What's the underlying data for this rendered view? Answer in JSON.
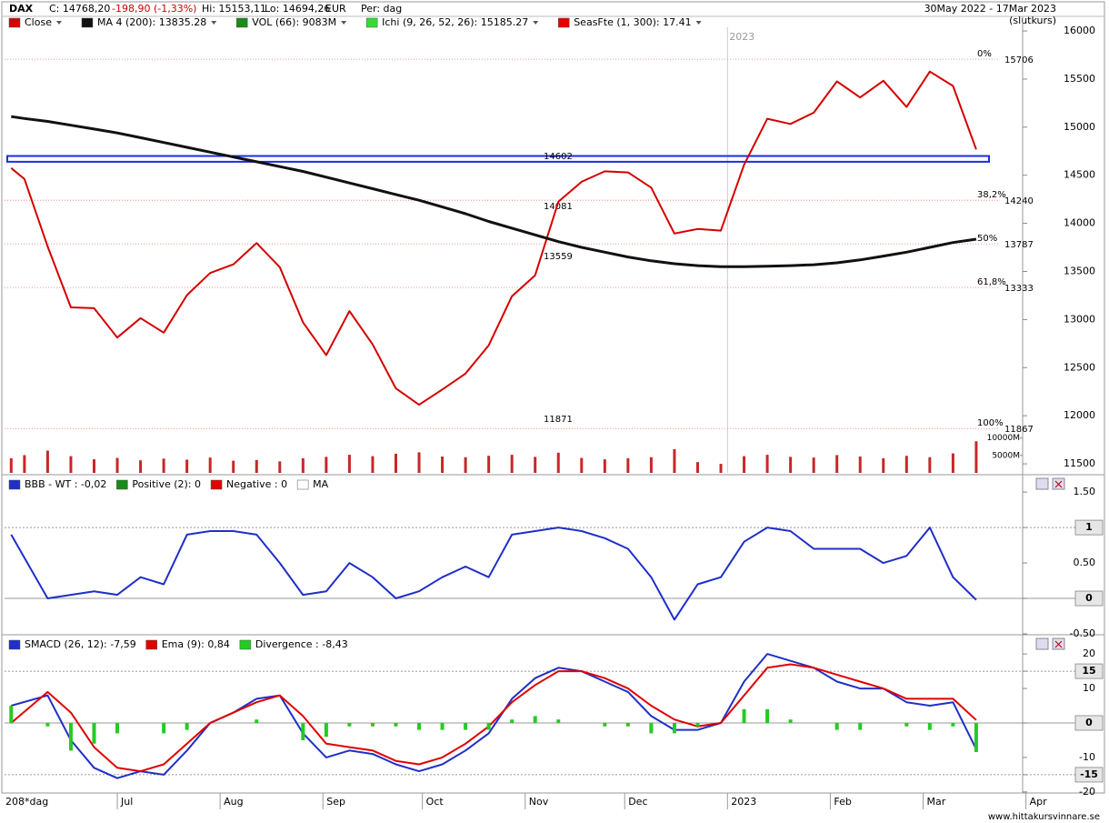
{
  "header": {
    "symbol": "DAX",
    "close": "C: 14768,20",
    "change": "-198,90 (-1,33%)",
    "high": "Hi: 15153,11",
    "low": "Lo: 14694,26",
    "currency": "EUR",
    "period": "Per: dag",
    "range": "30May 2022 - 17Mar 2023",
    "mode": "(slutkurs)"
  },
  "footer": "www.hittakursvinnare.se",
  "chart_data": [
    {
      "type": "line",
      "x": [
        0,
        4,
        11,
        18,
        25,
        32,
        39,
        46,
        53,
        60,
        67,
        74,
        81,
        88,
        95,
        102,
        109,
        116,
        123,
        130,
        137,
        144,
        151,
        158,
        165,
        172,
        179,
        186,
        193,
        200,
        207,
        214,
        221,
        228,
        235,
        242,
        249,
        256,
        263,
        270,
        277,
        284,
        291
      ],
      "xlim": [
        -2,
        305
      ],
      "ylim": [
        11406,
        16038
      ],
      "yticks": [
        11500,
        12000,
        12500,
        13000,
        13500,
        14000,
        14500,
        15000,
        15500,
        16000
      ],
      "series": [
        {
          "name": "Close",
          "color": "#d40000",
          "values": [
            14575,
            14460,
            13760,
            13126,
            13118,
            12813,
            13015,
            12864,
            13254,
            13484,
            13574,
            13795,
            13544,
            12971,
            12630,
            13088,
            12741,
            12284,
            12114,
            12273,
            12438,
            12731,
            13243,
            13460,
            14225,
            14432,
            14541,
            14529,
            14371,
            13894,
            13941,
            13924,
            14610,
            15087,
            15033,
            15150,
            15476,
            15308,
            15482,
            15210,
            15578,
            15428,
            14768.2
          ]
        },
        {
          "name": "MA 4 (200): 13835.28",
          "color": "#111111",
          "values": [
            15110,
            15090,
            15060,
            15020,
            14980,
            14940,
            14890,
            14840,
            14790,
            14740,
            14690,
            14640,
            14590,
            14540,
            14480,
            14420,
            14360,
            14300,
            14240,
            14170,
            14100,
            14020,
            13950,
            13880,
            13810,
            13750,
            13700,
            13650,
            13610,
            13580,
            13560,
            13550,
            13550,
            13555,
            13560,
            13570,
            13590,
            13620,
            13660,
            13700,
            13750,
            13800,
            13835.28
          ]
        }
      ],
      "volume": {
        "name": "VOL (66): 9083M",
        "color": "#1a8a1a",
        "ylim": [
          0,
          128000
        ],
        "ticks": [
          {
            "value": 10000,
            "label": "10000M"
          },
          {
            "value": 5000,
            "label": "5000M"
          }
        ],
        "values": [
          4200,
          5100,
          6400,
          4800,
          3900,
          4300,
          3600,
          4100,
          3800,
          4400,
          3500,
          3700,
          3300,
          4200,
          4600,
          5200,
          4800,
          5500,
          5900,
          4700,
          4500,
          4900,
          5200,
          4600,
          5800,
          4300,
          3900,
          4200,
          4500,
          6800,
          3100,
          2600,
          4800,
          5200,
          4600,
          4400,
          5100,
          4700,
          4200,
          4900,
          4500,
          5600,
          9083
        ]
      },
      "legend_extra": [
        {
          "name": "Ichi (9, 26, 52, 26): 15185.27",
          "color": "#33dd33"
        },
        {
          "name": "SeasFte (1, 300): 17.41",
          "color": "#e60000"
        }
      ],
      "year_marker": {
        "value": 216,
        "label": "2023"
      },
      "fib_levels": [
        {
          "pct": "0%",
          "value": 15706
        },
        {
          "pct": "38,2%",
          "value": 14240
        },
        {
          "pct": "50%",
          "value": 13787
        },
        {
          "pct": "61,8%",
          "value": 13333
        },
        {
          "pct": "100%",
          "value": 11867
        }
      ],
      "price_labels": [
        14602,
        14081,
        13559,
        11871
      ],
      "support_band": [
        14640,
        14700
      ]
    },
    {
      "type": "line",
      "x": [
        0,
        11,
        18,
        25,
        32,
        39,
        46,
        53,
        60,
        67,
        74,
        81,
        88,
        95,
        102,
        109,
        116,
        123,
        130,
        137,
        144,
        151,
        158,
        165,
        172,
        179,
        186,
        193,
        200,
        207,
        214,
        221,
        228,
        235,
        242,
        249,
        256,
        263,
        270,
        277,
        284,
        291
      ],
      "xlim": [
        -2,
        305
      ],
      "ylim": [
        -0.5,
        1.72
      ],
      "yticks": [
        {
          "value": 1.5,
          "label": "1.50"
        },
        1,
        {
          "value": 0.5,
          "label": "0.50"
        },
        0,
        {
          "value": -0.5,
          "label": "-0.50"
        }
      ],
      "reference_lines": [
        1,
        0
      ],
      "series": [
        {
          "name": "BBB - WT : -0,02",
          "color": "#1f2fc8",
          "values": [
            0.9,
            0.0,
            0.05,
            0.1,
            0.05,
            0.3,
            0.2,
            0.9,
            0.95,
            0.95,
            0.9,
            0.5,
            0.05,
            0.1,
            0.5,
            0.3,
            0.0,
            0.1,
            0.3,
            0.45,
            0.3,
            0.9,
            0.95,
            1.0,
            0.95,
            0.85,
            0.7,
            0.3,
            -0.3,
            0.2,
            0.3,
            0.8,
            1.0,
            0.95,
            0.7,
            0.7,
            0.7,
            0.5,
            0.6,
            1.0,
            0.3,
            -0.02
          ]
        }
      ],
      "legend_extra": [
        {
          "name": "Positive (2): 0",
          "color": "#1a8a1a"
        },
        {
          "name": "Negative : 0",
          "color": "#e00000"
        },
        {
          "name": "MA",
          "color": "#ffffff"
        }
      ]
    },
    {
      "type": "line",
      "x": [
        0,
        11,
        18,
        25,
        32,
        39,
        46,
        53,
        60,
        67,
        74,
        81,
        88,
        95,
        102,
        109,
        116,
        123,
        130,
        137,
        144,
        151,
        158,
        165,
        172,
        179,
        186,
        193,
        200,
        207,
        214,
        221,
        228,
        235,
        242,
        249,
        256,
        263,
        270,
        277,
        284,
        291
      ],
      "xlim": [
        -2,
        305
      ],
      "ylim": [
        -20.3,
        20.3
      ],
      "yticks": [
        20,
        15,
        10,
        0,
        -10,
        -15,
        -20
      ],
      "reference_lines": [
        15,
        0,
        -15
      ],
      "series": [
        {
          "name": "SMACD (26, 12): -7,59",
          "color": "#1f2fc8",
          "values": [
            5,
            8,
            -5,
            -13,
            -16,
            -14,
            -15,
            -8,
            0,
            3,
            7,
            8,
            -3,
            -10,
            -8,
            -9,
            -12,
            -14,
            -12,
            -8,
            -3,
            7,
            13,
            16,
            15,
            12,
            9,
            2,
            -2,
            -2,
            0,
            12,
            20,
            18,
            16,
            12,
            10,
            10,
            6,
            5,
            6,
            -7.59
          ]
        },
        {
          "name": "Ema (9): 0,84",
          "color": "#e00000",
          "values": [
            0,
            9,
            3,
            -7,
            -13,
            -14,
            -12,
            -6,
            0,
            3,
            6,
            8,
            2,
            -6,
            -7,
            -8,
            -11,
            -12,
            -10,
            -6,
            -1,
            6,
            11,
            15,
            15,
            13,
            10,
            5,
            1,
            -1,
            0,
            8,
            16,
            17,
            16,
            14,
            12,
            10,
            7,
            7,
            7,
            0.84
          ]
        },
        {
          "name": "Divergence : -8,43",
          "color": "#22cc22",
          "bars": true,
          "values": [
            5,
            -1,
            -8,
            -6,
            -3,
            0,
            -3,
            -2,
            0,
            0,
            1,
            0,
            -5,
            -4,
            -1,
            -1,
            -1,
            -2,
            -2,
            -2,
            -2,
            1,
            2,
            1,
            0,
            -1,
            -1,
            -3,
            -3,
            -1,
            0,
            4,
            4,
            1,
            0,
            -2,
            -2,
            0,
            -1,
            -2,
            -1,
            -8.43
          ]
        }
      ],
      "x_label": "208*dag",
      "xticks": [
        {
          "value": 32,
          "label": "Jul"
        },
        {
          "value": 63,
          "label": "Aug"
        },
        {
          "value": 94,
          "label": "Sep"
        },
        {
          "value": 124,
          "label": "Oct"
        },
        {
          "value": 155,
          "label": "Nov"
        },
        {
          "value": 185,
          "label": "Dec"
        },
        {
          "value": 216,
          "label": "2023"
        },
        {
          "value": 247,
          "label": "Feb"
        },
        {
          "value": 275,
          "label": "Mar"
        },
        {
          "value": 306,
          "label": "Apr"
        }
      ]
    }
  ]
}
